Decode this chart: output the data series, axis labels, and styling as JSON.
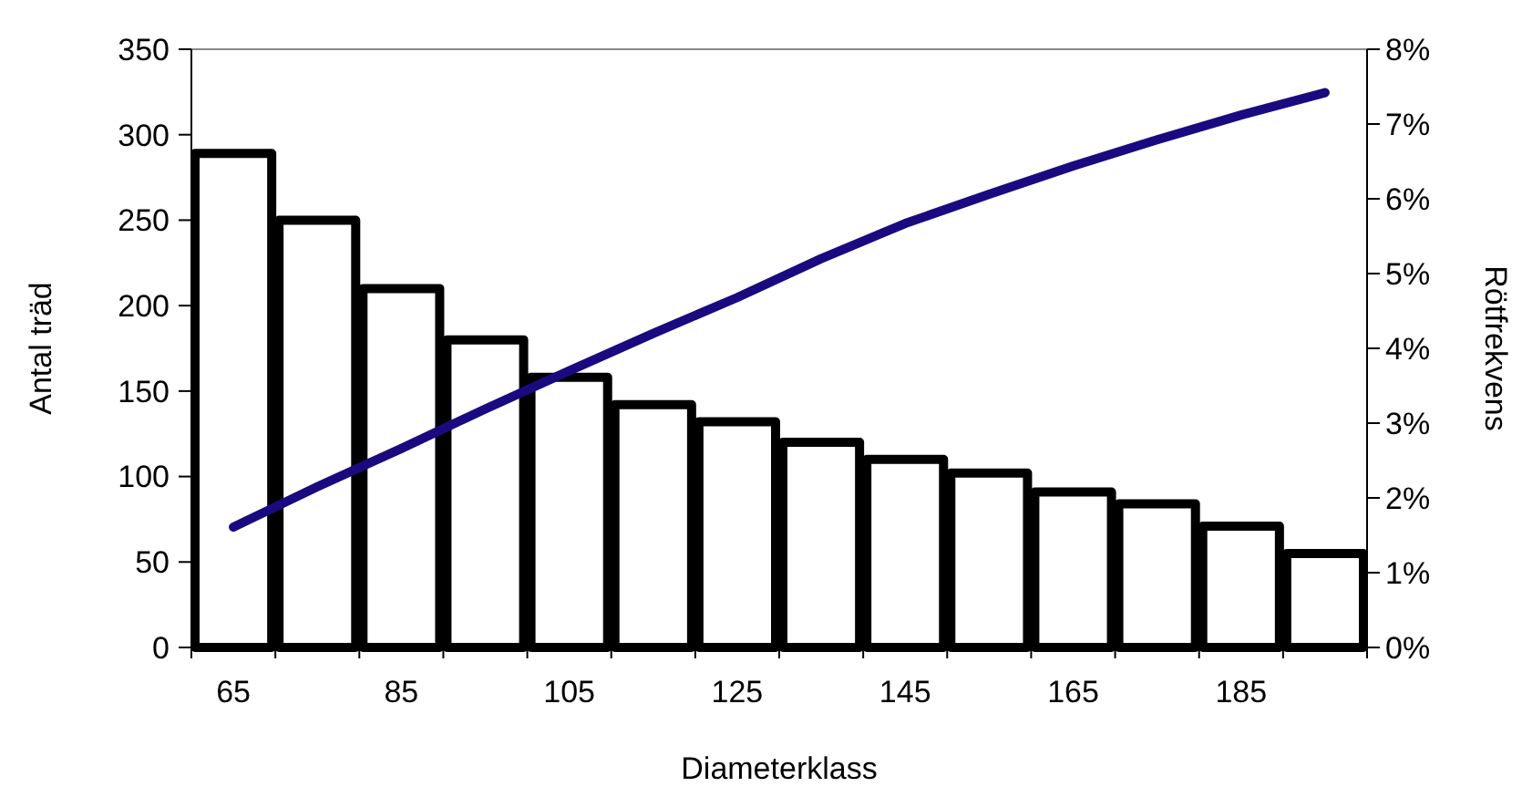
{
  "chart_data": {
    "type": "bar",
    "xlabel": "Diameterklass",
    "ylabel": "Antal träd",
    "y2label": "Rötfrekvens",
    "categories": [
      "65",
      null,
      "85",
      null,
      "105",
      null,
      "125",
      null,
      "145",
      null,
      "165",
      null,
      "185",
      null
    ],
    "series": [
      {
        "color": "#ffffff",
        "values": [
          289,
          250,
          210,
          180,
          158,
          142,
          132,
          120,
          110,
          102,
          91,
          84,
          71,
          55
        ]
      },
      {
        "type": "line",
        "axis": "y2",
        "color": "#1a0a80",
        "values": [
          1.61,
          2.15,
          2.66,
          3.19,
          3.7,
          4.2,
          4.68,
          5.2,
          5.67,
          6.06,
          6.44,
          6.79,
          7.12,
          7.42
        ]
      }
    ],
    "ylim": [
      0,
      350
    ],
    "yticks": [
      0,
      50,
      100,
      150,
      200,
      250,
      300,
      350
    ],
    "y2lim": [
      0,
      8
    ],
    "y2ticks": [
      {
        "value": 0,
        "label": "0%"
      },
      {
        "value": 1,
        "label": "1%"
      },
      {
        "value": 2,
        "label": "2%"
      },
      {
        "value": 3,
        "label": "3%"
      },
      {
        "value": 4,
        "label": "4%"
      },
      {
        "value": 5,
        "label": "5%"
      },
      {
        "value": 6,
        "label": "6%"
      },
      {
        "value": 7,
        "label": "7%"
      },
      {
        "value": 8,
        "label": "8%"
      }
    ],
    "grid": false,
    "marker": "none",
    "line_style": "solid"
  }
}
